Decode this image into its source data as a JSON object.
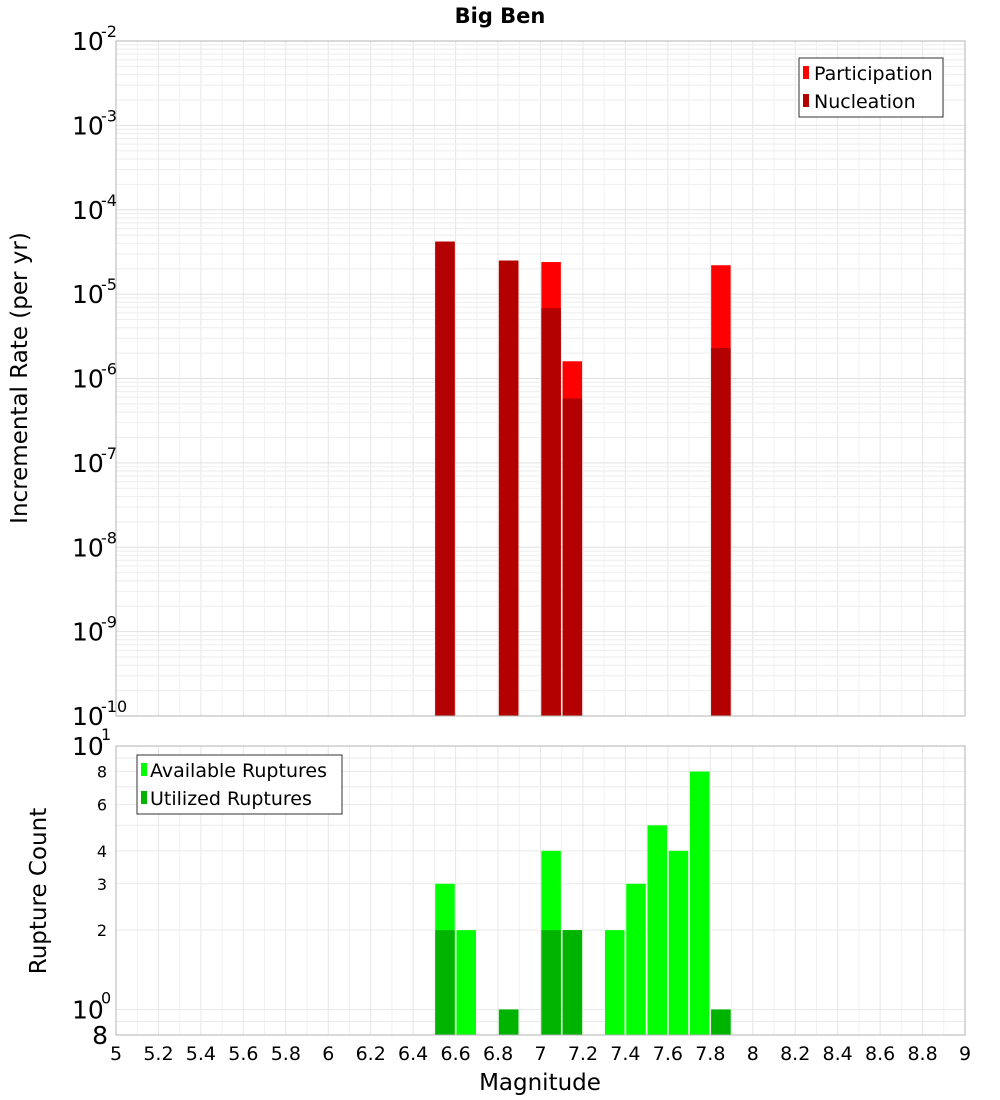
{
  "chart_data": [
    {
      "type": "bar",
      "title": "Big Ben",
      "ylabel": "Incremental Rate (per yr)",
      "yscale": "log",
      "ylim": [
        1e-10,
        0.01
      ],
      "xlim": [
        5,
        9
      ],
      "x_ticks": [
        "5",
        "5.2",
        "5.4",
        "5.6",
        "5.8",
        "6",
        "6.2",
        "6.4",
        "6.6",
        "6.8",
        "7",
        "7.2",
        "7.4",
        "7.6",
        "7.8",
        "8",
        "8.2",
        "8.4",
        "8.6",
        "8.8",
        "9"
      ],
      "y_ticks": [
        {
          "base": "10",
          "exp": "-2"
        },
        {
          "base": "10",
          "exp": "-3"
        },
        {
          "base": "10",
          "exp": "-4"
        },
        {
          "base": "10",
          "exp": "-5"
        },
        {
          "base": "10",
          "exp": "-6"
        },
        {
          "base": "10",
          "exp": "-7"
        },
        {
          "base": "10",
          "exp": "-8"
        },
        {
          "base": "10",
          "exp": "-9"
        },
        {
          "base": "10",
          "exp": "-10"
        }
      ],
      "legend_position": "top-right",
      "grid": true,
      "series": [
        {
          "name": "Participation",
          "color": "#ff0000",
          "x": [
            6.55,
            6.85,
            7.05,
            7.15,
            7.85
          ],
          "values": [
            4.2e-05,
            2.5e-05,
            2.4e-05,
            1.6e-06,
            2.2e-05
          ]
        },
        {
          "name": "Nucleation",
          "color": "#b30000",
          "x": [
            6.55,
            6.85,
            7.05,
            7.15,
            7.85
          ],
          "values": [
            4.2e-05,
            2.5e-05,
            6.8e-06,
            5.8e-07,
            2.3e-06
          ]
        }
      ]
    },
    {
      "type": "bar",
      "ylabel": "Rupture Count",
      "xlabel": "Magnitude",
      "yscale": "log",
      "ylim": [
        0.8,
        10
      ],
      "xlim": [
        5,
        9
      ],
      "x_ticks": [
        "5",
        "5.2",
        "5.4",
        "5.6",
        "5.8",
        "6",
        "6.2",
        "6.4",
        "6.6",
        "6.8",
        "7",
        "7.2",
        "7.4",
        "7.6",
        "7.8",
        "8",
        "8.2",
        "8.4",
        "8.6",
        "8.8",
        "9"
      ],
      "y_major_ticks": [
        {
          "base": "10",
          "exp": "1"
        },
        {
          "base": "10",
          "exp": "0"
        }
      ],
      "y_minor_ticks": [
        "8",
        "6",
        "4",
        "3",
        "2",
        "8"
      ],
      "legend_position": "top-left",
      "grid": true,
      "series": [
        {
          "name": "Available Ruptures",
          "color": "#00ff00",
          "x": [
            6.55,
            6.65,
            6.85,
            7.05,
            7.15,
            7.35,
            7.45,
            7.55,
            7.65,
            7.75,
            7.85
          ],
          "values": [
            3,
            2,
            1,
            4,
            2,
            2,
            3,
            5,
            4,
            8,
            1
          ]
        },
        {
          "name": "Utilized Ruptures",
          "color": "#00b300",
          "x": [
            6.55,
            6.85,
            7.05,
            7.15,
            7.85
          ],
          "values": [
            2,
            1,
            2,
            2,
            1
          ]
        }
      ]
    }
  ]
}
